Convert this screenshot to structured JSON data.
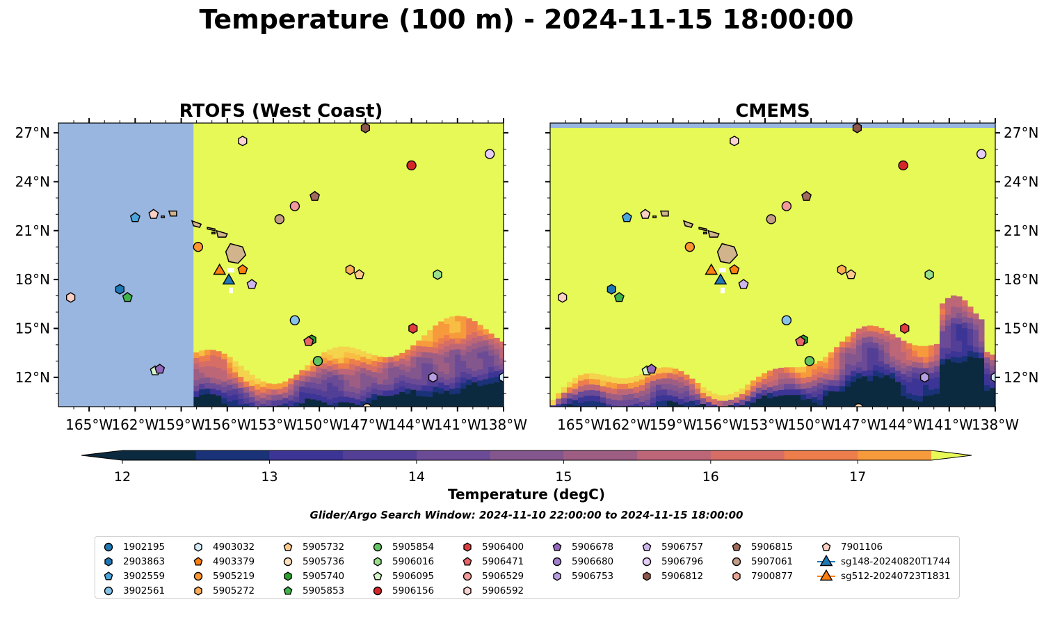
{
  "title": "Temperature (100 m) - 2024-11-15 18:00:00",
  "panels": [
    {
      "title": "RTOFS (West Coast)"
    },
    {
      "title": "CMEMS"
    }
  ],
  "axes": {
    "lon_ticks": [
      "165°W",
      "162°W",
      "159°W",
      "156°W",
      "153°W",
      "150°W",
      "147°W",
      "144°W",
      "141°W",
      "138°W"
    ],
    "lat_ticks": [
      "27°N",
      "24°N",
      "21°N",
      "18°N",
      "15°N",
      "12°N"
    ],
    "lon_range": [
      -167,
      -138
    ],
    "lat_range": [
      10.2,
      27.6
    ]
  },
  "colorbar": {
    "label": "Temperature (degC)",
    "ticks": [
      "12",
      "13",
      "14",
      "15",
      "16",
      "17"
    ],
    "levels": [
      12.0,
      12.5,
      13.0,
      13.5,
      14.0,
      14.5,
      15.0,
      15.5,
      16.0,
      16.5,
      17.0,
      17.5
    ],
    "colors": [
      "#0b2a3f",
      "#1a3277",
      "#3c3596",
      "#533f96",
      "#6b4a96",
      "#83568e",
      "#9e5e84",
      "#bd6677",
      "#d66e66",
      "#ed7e4c",
      "#f69a3c",
      "#f8bd43",
      "#f4d34d"
    ],
    "under_color": "#0b2a3f",
    "over_color": "#e6f957"
  },
  "colors": {
    "land": "#d2b48c",
    "nodata": "#98b6e0",
    "warm": "#e6f957"
  },
  "search_window": "Glider/Argo Search Window: 2024-11-10 22:00:00 to 2024-11-15 18:00:00",
  "legend": [
    {
      "name": "1902195",
      "marker": "circle",
      "color": "#1f77b4"
    },
    {
      "name": "2903863",
      "marker": "hexagon",
      "color": "#1f77b4"
    },
    {
      "name": "3902559",
      "marker": "pentagon",
      "color": "#4aa5db"
    },
    {
      "name": "3902561",
      "marker": "circle",
      "color": "#87c3e8"
    },
    {
      "name": "4903032",
      "marker": "hexagon",
      "color": "#d6ecfa"
    },
    {
      "name": "4903379",
      "marker": "pentagon",
      "color": "#ff7f0e"
    },
    {
      "name": "5905219",
      "marker": "circle",
      "color": "#ff952e"
    },
    {
      "name": "5905272",
      "marker": "hexagon",
      "color": "#ffac56"
    },
    {
      "name": "5905732",
      "marker": "pentagon",
      "color": "#ffc88c"
    },
    {
      "name": "5905736",
      "marker": "circle",
      "color": "#ffe0bd"
    },
    {
      "name": "5905740",
      "marker": "hexagon",
      "color": "#2ca02c"
    },
    {
      "name": "5905853",
      "marker": "pentagon",
      "color": "#3fb34a"
    },
    {
      "name": "5905854",
      "marker": "circle",
      "color": "#63c462"
    },
    {
      "name": "5906016",
      "marker": "hexagon",
      "color": "#98df8a"
    },
    {
      "name": "5906095",
      "marker": "pentagon",
      "color": "#d4f5c8"
    },
    {
      "name": "5906156",
      "marker": "circle",
      "color": "#d62728"
    },
    {
      "name": "5906400",
      "marker": "hexagon",
      "color": "#e03c3d"
    },
    {
      "name": "5906471",
      "marker": "pentagon",
      "color": "#ea6468"
    },
    {
      "name": "5906529",
      "marker": "circle",
      "color": "#f2999a"
    },
    {
      "name": "5906592",
      "marker": "hexagon",
      "color": "#fbd3d2"
    },
    {
      "name": "5906678",
      "marker": "pentagon",
      "color": "#9467bd"
    },
    {
      "name": "5906680",
      "marker": "circle",
      "color": "#a27fcb"
    },
    {
      "name": "5906753",
      "marker": "hexagon",
      "color": "#b79ee0"
    },
    {
      "name": "5906757",
      "marker": "pentagon",
      "color": "#cfb5ee"
    },
    {
      "name": "5906796",
      "marker": "circle",
      "color": "#e6cdf7"
    },
    {
      "name": "5906812",
      "marker": "hexagon",
      "color": "#8c564b"
    },
    {
      "name": "5906815",
      "marker": "pentagon",
      "color": "#a06b5d"
    },
    {
      "name": "5907061",
      "marker": "circle",
      "color": "#c49c86"
    },
    {
      "name": "7900877",
      "marker": "hexagon",
      "color": "#e8a593"
    },
    {
      "name": "7901106",
      "marker": "pentagon",
      "color": "#fbd0c4"
    },
    {
      "name": "sg148-20240820T1744",
      "marker": "triangle-line",
      "color": "#1f77b4"
    },
    {
      "name": "sg512-20240723T1831",
      "marker": "triangle-line",
      "color": "#ff7f0e"
    }
  ],
  "observations": [
    {
      "lon": -166.2,
      "lat": 16.9,
      "marker": "hexagon",
      "color": "#fbd0c4"
    },
    {
      "lon": -163.0,
      "lat": 17.4,
      "marker": "hexagon",
      "color": "#1f77b4"
    },
    {
      "lon": -162.5,
      "lat": 16.9,
      "marker": "pentagon",
      "color": "#3fb34a"
    },
    {
      "lon": -162.0,
      "lat": 21.8,
      "marker": "pentagon",
      "color": "#4aa5db"
    },
    {
      "lon": -160.8,
      "lat": 22.0,
      "marker": "pentagon",
      "color": "#fbd0c4"
    },
    {
      "lon": -160.7,
      "lat": 12.4,
      "marker": "pentagon",
      "color": "#d4f5c8"
    },
    {
      "lon": -160.4,
      "lat": 12.5,
      "marker": "pentagon",
      "color": "#9467bd"
    },
    {
      "lon": -157.9,
      "lat": 20.0,
      "marker": "circle",
      "color": "#ff952e"
    },
    {
      "lon": -155.0,
      "lat": 26.5,
      "marker": "hexagon",
      "color": "#fbd3d2"
    },
    {
      "lon": -155.0,
      "lat": 18.6,
      "marker": "pentagon",
      "color": "#ff7f0e"
    },
    {
      "lon": -154.4,
      "lat": 17.7,
      "marker": "pentagon",
      "color": "#cfb5ee"
    },
    {
      "lon": -152.6,
      "lat": 21.7,
      "marker": "circle",
      "color": "#c49c86"
    },
    {
      "lon": -151.6,
      "lat": 22.5,
      "marker": "circle",
      "color": "#f2999a"
    },
    {
      "lon": -151.6,
      "lat": 15.5,
      "marker": "circle",
      "color": "#87c3e8"
    },
    {
      "lon": -150.3,
      "lat": 23.1,
      "marker": "pentagon",
      "color": "#a06b5d"
    },
    {
      "lon": -150.5,
      "lat": 14.3,
      "marker": "hexagon",
      "color": "#2ca02c"
    },
    {
      "lon": -150.7,
      "lat": 14.2,
      "marker": "pentagon",
      "color": "#ea6468"
    },
    {
      "lon": -150.1,
      "lat": 13.0,
      "marker": "circle",
      "color": "#63c462"
    },
    {
      "lon": -148.0,
      "lat": 18.6,
      "marker": "hexagon",
      "color": "#ffac56"
    },
    {
      "lon": -147.4,
      "lat": 18.3,
      "marker": "pentagon",
      "color": "#ffc88c"
    },
    {
      "lon": -147.0,
      "lat": 27.3,
      "marker": "hexagon",
      "color": "#8c564b"
    },
    {
      "lon": -146.9,
      "lat": 10.1,
      "marker": "circle",
      "color": "#ffe0bd"
    },
    {
      "lon": -144.0,
      "lat": 25.0,
      "marker": "circle",
      "color": "#d62728"
    },
    {
      "lon": -143.9,
      "lat": 15.0,
      "marker": "hexagon",
      "color": "#e03c3d"
    },
    {
      "lon": -142.6,
      "lat": 12.0,
      "marker": "hexagon",
      "color": "#b79ee0"
    },
    {
      "lon": -142.3,
      "lat": 18.3,
      "marker": "hexagon",
      "color": "#98df8a"
    },
    {
      "lon": -138.9,
      "lat": 25.7,
      "marker": "circle",
      "color": "#e6cdf7"
    },
    {
      "lon": -138.0,
      "lat": 12.0,
      "marker": "hexagon",
      "color": "#d6ecfa"
    },
    {
      "lon": -156.5,
      "lat": 18.6,
      "marker": "triangle",
      "color": "#ff7f0e"
    },
    {
      "lon": -155.9,
      "lat": 18.0,
      "marker": "triangle",
      "color": "#1f77b4"
    }
  ]
}
